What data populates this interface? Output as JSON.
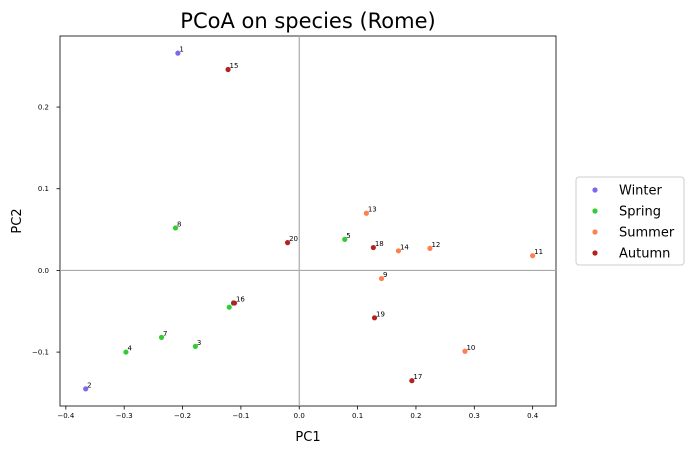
{
  "chart_data": {
    "type": "scatter",
    "title": "PCoA on species (Rome)",
    "xlabel": "PC1",
    "ylabel": "PC2",
    "xlim": [
      -0.41,
      0.44
    ],
    "ylim": [
      -0.166,
      0.287
    ],
    "xticks": [
      -0.4,
      -0.3,
      -0.2,
      -0.1,
      0.0,
      0.1,
      0.2,
      0.3,
      0.4
    ],
    "xtick_labels": [
      "−0.4",
      "−0.3",
      "−0.2",
      "−0.1",
      "0.0",
      "0.1",
      "0.2",
      "0.3",
      "0.4"
    ],
    "yticks": [
      -0.1,
      0.0,
      0.1,
      0.2
    ],
    "ytick_labels": [
      "−0.1",
      "0.0",
      "0.1",
      "0.2"
    ],
    "grid": false,
    "reference_lines": {
      "x": 0,
      "y": 0
    },
    "legend_position": "right",
    "series": [
      {
        "name": "Winter",
        "color": "#7b68ee",
        "points": [
          {
            "label": "1",
            "x": -0.208,
            "y": 0.266
          },
          {
            "label": "2",
            "x": -0.366,
            "y": -0.145
          }
        ]
      },
      {
        "name": "Spring",
        "color": "#32cd32",
        "points": [
          {
            "label": "3",
            "x": -0.178,
            "y": -0.093
          },
          {
            "label": "4",
            "x": -0.297,
            "y": -0.1
          },
          {
            "label": "5",
            "x": 0.078,
            "y": 0.038
          },
          {
            "label": "6",
            "x": -0.12,
            "y": -0.045
          },
          {
            "label": "7",
            "x": -0.236,
            "y": -0.082
          },
          {
            "label": "8",
            "x": -0.212,
            "y": 0.052
          }
        ]
      },
      {
        "name": "Summer",
        "color": "#ff7f50",
        "points": [
          {
            "label": "9",
            "x": 0.141,
            "y": -0.01
          },
          {
            "label": "10",
            "x": 0.284,
            "y": -0.099
          },
          {
            "label": "11",
            "x": 0.4,
            "y": 0.018
          },
          {
            "label": "12",
            "x": 0.224,
            "y": 0.027
          },
          {
            "label": "13",
            "x": 0.115,
            "y": 0.07
          },
          {
            "label": "14",
            "x": 0.17,
            "y": 0.024
          }
        ]
      },
      {
        "name": "Autumn",
        "color": "#b22222",
        "points": [
          {
            "label": "15",
            "x": -0.122,
            "y": 0.246
          },
          {
            "label": "16",
            "x": -0.111,
            "y": -0.04
          },
          {
            "label": "17",
            "x": 0.193,
            "y": -0.135
          },
          {
            "label": "18",
            "x": 0.127,
            "y": 0.028
          },
          {
            "label": "19",
            "x": 0.129,
            "y": -0.058
          },
          {
            "label": "20",
            "x": -0.02,
            "y": 0.034
          }
        ]
      }
    ]
  }
}
